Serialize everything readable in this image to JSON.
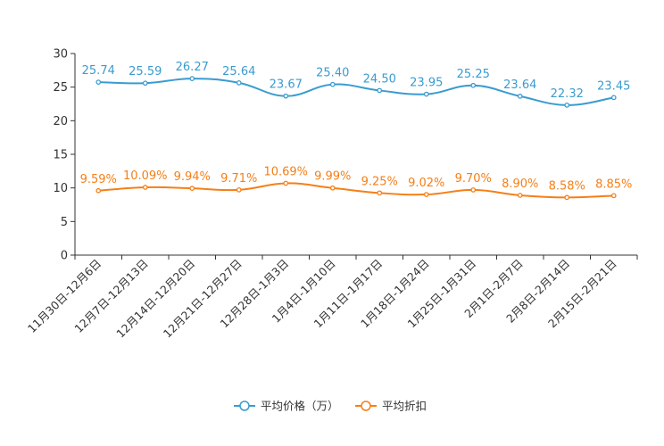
{
  "chart_data": {
    "type": "line",
    "categories": [
      "11月30日-12月6日",
      "12月7日-12月13日",
      "12月14日-12月20日",
      "12月21日-12月27日",
      "12月28日-1月3日",
      "1月4日-1月10日",
      "1月11日-1月17日",
      "1月18日-1月24日",
      "1月25日-1月31日",
      "2月1日-2月7日",
      "2月8日-2月14日",
      "2月15日-2月21日"
    ],
    "ylim": [
      0,
      30
    ],
    "yticks": [
      0,
      5,
      10,
      15,
      20,
      25,
      30
    ],
    "grid": false,
    "legend_position": "bottom-center",
    "series": [
      {
        "name": "平均价格（万）",
        "color": "#3a9bd0",
        "values": [
          25.74,
          25.59,
          26.27,
          25.64,
          23.67,
          25.4,
          24.5,
          23.95,
          25.25,
          23.64,
          22.32,
          23.45
        ],
        "labels": [
          "25.74",
          "25.59",
          "26.27",
          "25.64",
          "23.67",
          "25.40",
          "24.50",
          "23.95",
          "25.25",
          "23.64",
          "22.32",
          "23.45"
        ]
      },
      {
        "name": "平均折扣",
        "color": "#f57f17",
        "values": [
          9.59,
          10.09,
          9.94,
          9.71,
          10.69,
          9.99,
          9.25,
          9.02,
          9.7,
          8.9,
          8.58,
          8.85
        ],
        "labels": [
          "9.59%",
          "10.09%",
          "9.94%",
          "9.71%",
          "10.69%",
          "9.99%",
          "9.25%",
          "9.02%",
          "9.70%",
          "8.90%",
          "8.58%",
          "8.85%"
        ]
      }
    ]
  }
}
